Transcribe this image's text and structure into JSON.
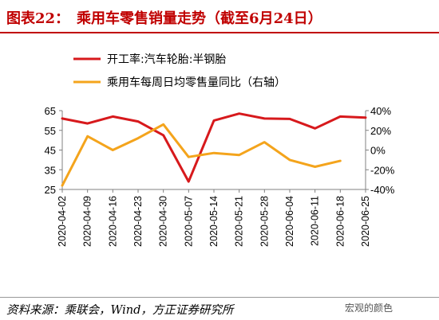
{
  "title": "图表22：　乘用车零售销量走势（截至6月24日）",
  "source": "资料来源：乘联会，Wind，方正证券研究所",
  "watermark": "宏观的颜色",
  "colors": {
    "series1": "#d7191c",
    "series2": "#f4a41c",
    "title": "#c00000"
  },
  "chart_data": {
    "type": "line",
    "x": [
      "2020-04-02",
      "2020-04-09",
      "2020-04-16",
      "2020-04-23",
      "2020-04-30",
      "2020-05-07",
      "2020-05-14",
      "2020-05-21",
      "2020-05-28",
      "2020-06-04",
      "2020-06-11",
      "2020-06-18",
      "2020-06-25"
    ],
    "y_left": {
      "ticks": [
        25,
        35,
        45,
        55,
        65
      ],
      "ylim": [
        25,
        65
      ]
    },
    "y_right": {
      "ticks": [
        "-40%",
        "-20%",
        "0%",
        "20%",
        "40%"
      ],
      "ylim": [
        -40,
        40
      ]
    },
    "series": [
      {
        "name": "开工率:汽车轮胎:半钢胎",
        "axis": "left",
        "values": [
          61,
          58.5,
          62,
          59.5,
          52.5,
          29,
          60,
          63.5,
          61,
          60.8,
          56,
          62,
          61.5
        ]
      },
      {
        "name": "乘用车每周日均零售量同比（右轴）",
        "axis": "right",
        "values": [
          -36,
          14,
          0,
          12,
          26,
          -7,
          -3,
          -5,
          8,
          -10,
          -17,
          -11,
          null
        ]
      }
    ],
    "legend_position": "top-left"
  }
}
